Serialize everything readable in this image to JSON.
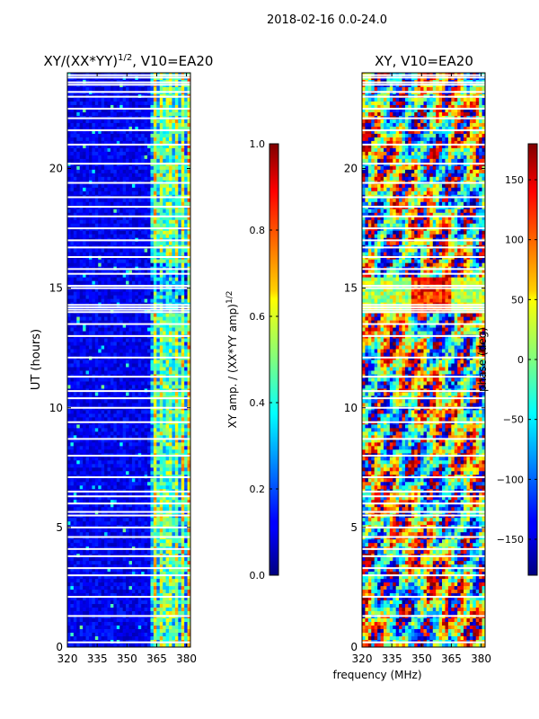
{
  "suptitle": "2018-02-16 0.0-24.0",
  "chart_data": [
    {
      "type": "heatmap",
      "title_main": "XY/(XX*YY)",
      "title_sup": "1/2",
      "title_tail": ", V10=EA20",
      "xlabel": "",
      "ylabel": "UT (hours)",
      "xlim": [
        320,
        382
      ],
      "ylim": [
        0,
        24
      ],
      "xticks": [
        320,
        335,
        350,
        365,
        380
      ],
      "yticks": [
        0,
        5,
        10,
        15,
        20
      ],
      "colorbar": {
        "label_main": "XY amp. / (XX*YY amp)",
        "label_sup": "1/2",
        "range": [
          0.0,
          1.0
        ],
        "ticks": [
          "0.0",
          "0.2",
          "0.4",
          "0.6",
          "0.8",
          "1.0"
        ],
        "colormap": "jet"
      }
    },
    {
      "type": "heatmap",
      "title": "XY, V10=EA20",
      "xlabel": "frequency (MHz)",
      "ylabel": "",
      "xlim": [
        320,
        382
      ],
      "ylim": [
        0,
        24
      ],
      "xticks": [
        320,
        335,
        350,
        365,
        380
      ],
      "yticks": [
        0,
        5,
        10,
        15,
        20
      ],
      "colorbar": {
        "label": "phase (deg)",
        "range": [
          -180,
          180
        ],
        "ticks": [
          "−150",
          "−100",
          "−50",
          "0",
          "50",
          "100",
          "150"
        ],
        "colormap": "jet"
      }
    }
  ],
  "flagged_rows_hours": [
    0.2,
    1.3,
    2.1,
    3.0,
    3.3,
    3.8,
    4.1,
    4.6,
    5.0,
    5.5,
    5.65,
    6.0,
    6.3,
    6.5,
    7.1,
    8.0,
    8.7,
    9.4,
    10.0,
    10.4,
    10.7,
    11.3,
    12.1,
    13.0,
    13.5,
    14.0,
    14.1,
    14.2,
    14.3,
    15.0,
    15.1,
    15.6,
    15.8,
    16.3,
    16.7,
    17.0,
    17.5,
    18.0,
    18.4,
    18.8,
    19.4,
    20.2,
    21.0,
    21.6,
    22.1,
    22.5,
    23.0,
    23.2,
    23.5,
    23.6,
    23.8,
    23.9
  ]
}
